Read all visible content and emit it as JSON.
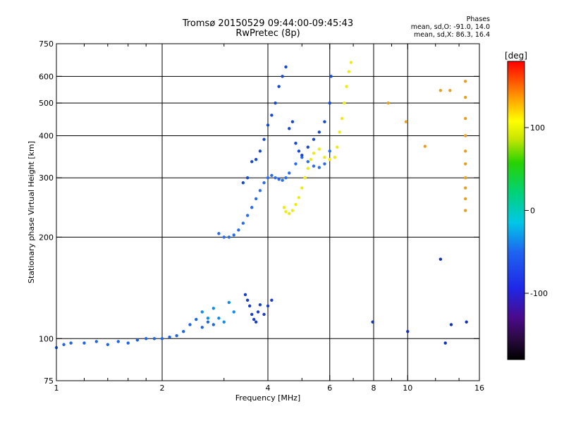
{
  "header": {
    "title": "Tromsø 20150529 09:44:00-09:45:43",
    "subtitle": "RwPretec (8p)"
  },
  "stats": {
    "heading": "Phases",
    "line_o": "mean, sd,O: -91.0, 14.0",
    "line_x": "mean, sd,X:  86.3, 16.4"
  },
  "chart_data": {
    "type": "scatter",
    "xlabel": "Frequency [MHz]",
    "ylabel": "Stationary phase Virtual Height [km]",
    "xscale": "log",
    "yscale": "log",
    "xlim": [
      1,
      16
    ],
    "ylim": [
      75,
      750
    ],
    "x_ticks": [
      1,
      2,
      4,
      6,
      8,
      10,
      16
    ],
    "x_ticks_labeled": [
      "1",
      "2",
      "4",
      "6",
      "8",
      "10",
      "16"
    ],
    "x_minor_ticks": [
      1.2,
      1.4,
      1.6,
      1.8,
      3,
      5,
      7,
      9,
      12,
      14
    ],
    "y_ticks": [
      75,
      100,
      200,
      300,
      400,
      500,
      600,
      750
    ],
    "y_ticks_labeled": [
      "75",
      "100",
      "200",
      "300",
      "400",
      "500",
      "600",
      "750"
    ],
    "grid_x": [
      2,
      4,
      6,
      8,
      10
    ],
    "grid_y": [
      100,
      200,
      300,
      400,
      500,
      600
    ],
    "colorbar": {
      "label": "[deg]",
      "range": [
        -180,
        180
      ],
      "ticks": [
        100,
        0,
        -100
      ],
      "tick_labels": [
        "100",
        "0",
        "-100"
      ]
    },
    "series": [
      {
        "color": "#1e64e6",
        "phase": -100,
        "x": [
          1.0,
          1.05,
          1.1,
          1.2,
          1.3,
          1.4,
          1.5,
          1.6,
          1.7,
          1.8,
          1.9,
          2.0,
          2.1,
          2.2,
          2.3,
          2.4,
          2.5,
          2.6,
          2.7,
          2.8
        ],
        "y": [
          94,
          96,
          97,
          97,
          98,
          96,
          98,
          97,
          99,
          100,
          100,
          100,
          101,
          102,
          105,
          110,
          114,
          108,
          112,
          110
        ]
      },
      {
        "color": "#2a6cf0",
        "phase": -95,
        "x": [
          2.9,
          3.0,
          3.1,
          3.2,
          3.3,
          3.4,
          3.5,
          3.6,
          3.7,
          3.8,
          3.9,
          4.0,
          4.1,
          4.2,
          4.3,
          4.4,
          4.5,
          4.6,
          4.8,
          5.0,
          5.2,
          5.4,
          5.6,
          5.8,
          6.0
        ],
        "y": [
          205,
          200,
          200,
          203,
          210,
          220,
          232,
          245,
          260,
          275,
          290,
          300,
          305,
          300,
          297,
          295,
          300,
          310,
          330,
          345,
          335,
          325,
          322,
          330,
          360
        ]
      },
      {
        "color": "#1648d2",
        "phase": -105,
        "x": [
          3.4,
          3.5,
          3.6,
          3.7,
          3.8,
          3.9,
          4.0,
          4.1,
          4.2,
          4.3,
          4.4,
          4.5,
          4.6,
          4.7,
          4.8,
          4.9,
          5.0,
          5.2,
          5.4,
          5.6,
          5.8,
          6.0,
          6.05
        ],
        "y": [
          290,
          300,
          335,
          340,
          360,
          390,
          430,
          460,
          500,
          560,
          600,
          640,
          420,
          440,
          380,
          360,
          350,
          370,
          390,
          410,
          440,
          500,
          600
        ]
      },
      {
        "color": "#1a3cc8",
        "phase": -110,
        "x": [
          3.45,
          3.5,
          3.55,
          3.6,
          3.65,
          3.7,
          3.75,
          3.8,
          3.9,
          4.0,
          4.1
        ],
        "y": [
          135,
          130,
          125,
          118,
          114,
          112,
          120,
          126,
          118,
          125,
          130
        ]
      },
      {
        "color": "#ecec14",
        "phase": 110,
        "x": [
          4.45,
          4.5,
          4.6,
          4.7,
          4.8,
          4.9,
          5.0,
          5.1,
          5.2,
          5.3,
          5.4,
          5.6,
          5.8,
          6.0,
          6.2,
          6.3,
          6.4,
          6.5,
          6.6,
          6.7,
          6.8,
          6.9
        ],
        "y": [
          245,
          238,
          235,
          240,
          250,
          262,
          280,
          300,
          320,
          340,
          355,
          365,
          345,
          340,
          345,
          370,
          410,
          450,
          500,
          560,
          620,
          660
        ]
      },
      {
        "color": "#0a8cf0",
        "phase": -60,
        "x": [
          2.6,
          2.7,
          2.8,
          2.9,
          3.0,
          3.1,
          3.2
        ],
        "y": [
          120,
          115,
          123,
          115,
          112,
          128,
          120
        ]
      },
      {
        "color": "#e6a020",
        "phase": 130,
        "x": [
          14.6,
          14.6,
          14.6,
          14.6,
          14.6,
          14.6,
          14.6,
          14.6,
          14.6,
          14.6,
          13.2,
          11.2,
          9.9,
          8.8,
          12.4
        ],
        "y": [
          240,
          260,
          280,
          300,
          330,
          360,
          400,
          450,
          520,
          580,
          545,
          372,
          440,
          500,
          545
        ]
      },
      {
        "color": "#1430b4",
        "phase": -120,
        "x": [
          7.95,
          10.0,
          12.4,
          13.3,
          14.7,
          12.8
        ],
        "y": [
          112,
          105,
          172,
          110,
          112,
          97
        ]
      }
    ]
  }
}
